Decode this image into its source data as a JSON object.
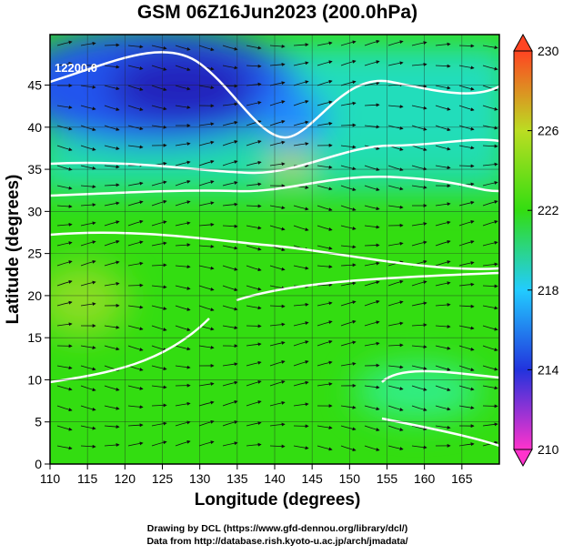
{
  "chart_data": {
    "type": "heatmap",
    "title": "GSM 06Z16Jun2023 (200.0hPa)",
    "xlabel": "Longitude (degrees)",
    "ylabel": "Latitude  (degrees)",
    "xlim": [
      110,
      170
    ],
    "ylim": [
      0,
      51
    ],
    "xticks": [
      110,
      115,
      120,
      125,
      130,
      135,
      140,
      145,
      150,
      155,
      160,
      165
    ],
    "yticks": [
      0,
      5,
      10,
      15,
      20,
      25,
      30,
      35,
      40,
      45
    ],
    "grid": true,
    "colorbar": {
      "lim": [
        210,
        230
      ],
      "ticks": [
        210,
        214,
        218,
        222,
        226,
        230
      ],
      "colors": [
        "#ff33cc",
        "#2233dd",
        "#22ccff",
        "#33dd11",
        "#bbdd22",
        "#ff4422"
      ]
    },
    "contour_labels": [
      "12200.0"
    ],
    "footer": [
      "Drawing by DCL (https://www.gfd-dennou.org/library/dcl/)",
      "Data from http://database.rish.kyoto-u.ac.jp/arch/jmadata/"
    ]
  }
}
